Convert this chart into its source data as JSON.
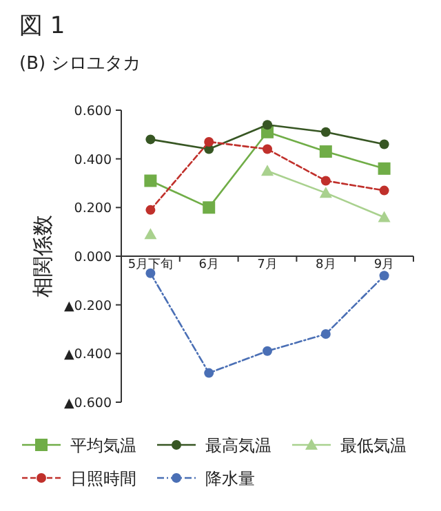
{
  "chart_data": {
    "type": "line",
    "title": "図 1",
    "subtitle": "(B) シロユタカ",
    "ylabel": "相関係数",
    "categories": [
      "5月下旬",
      "6月",
      "7月",
      "8月",
      "9月"
    ],
    "ylim": [
      -0.6,
      0.6
    ],
    "yticks": [
      {
        "value": -0.6,
        "label": "▲0.600"
      },
      {
        "value": -0.4,
        "label": "▲0.400"
      },
      {
        "value": -0.2,
        "label": "▲0.200"
      },
      {
        "value": 0,
        "label": "0.000"
      },
      {
        "value": 0.2,
        "label": "0.200"
      },
      {
        "value": 0.4,
        "label": "0.400"
      },
      {
        "value": 0.6,
        "label": "0.600"
      }
    ],
    "grid": false,
    "legend": "bottom",
    "series": [
      {
        "name": "平均気温",
        "color": "#70ad47",
        "marker": "square",
        "line_style": "solid",
        "values": [
          0.31,
          0.2,
          0.51,
          0.43,
          0.36
        ]
      },
      {
        "name": "最高気温",
        "color": "#375623",
        "marker": "circle",
        "line_style": "solid",
        "values": [
          0.48,
          0.44,
          0.54,
          0.51,
          0.46
        ]
      },
      {
        "name": "最低気温",
        "color": "#a9d18e",
        "marker": "triangle",
        "line_style": "solid",
        "values": [
          0.09,
          null,
          0.35,
          0.26,
          0.16
        ]
      },
      {
        "name": "日照時間",
        "color": "#c0302b",
        "marker": "circle",
        "line_style": "dashed",
        "values": [
          0.19,
          0.47,
          0.44,
          0.31,
          0.27
        ]
      },
      {
        "name": "降水量",
        "color": "#4a6fb5",
        "marker": "circle",
        "line_style": "dotted",
        "values": [
          -0.07,
          -0.48,
          -0.39,
          -0.32,
          -0.08
        ]
      }
    ]
  }
}
